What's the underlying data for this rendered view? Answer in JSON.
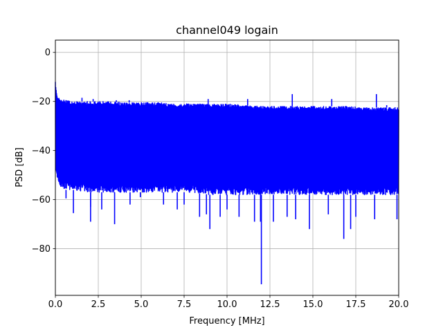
{
  "chart_data": {
    "type": "line",
    "title": "channel049 logain",
    "xlabel": "Frequency [MHz]",
    "ylabel": "PSD [dB]",
    "xlim": [
      0,
      20
    ],
    "ylim": [
      -99,
      5
    ],
    "xticks": [
      0,
      2.5,
      5,
      7.5,
      10,
      12.5,
      15,
      17.5,
      20
    ],
    "xtick_labels": [
      "0.0",
      "2.5",
      "5.0",
      "7.5",
      "10.0",
      "12.5",
      "15.0",
      "17.5",
      "20.0"
    ],
    "yticks": [
      0,
      -20,
      -40,
      -60,
      -80
    ],
    "ytick_labels": [
      "0",
      "−20",
      "−40",
      "−60",
      "−80"
    ],
    "grid": true,
    "series": [
      {
        "color": "#0000ff",
        "envelope": {
          "x": [
            0,
            0.1,
            0.3,
            0.6,
            1,
            2,
            3,
            4,
            5,
            6,
            7,
            8,
            9,
            10,
            11,
            12,
            13,
            14,
            15,
            16,
            17,
            18,
            19,
            20
          ],
          "upper": [
            -12,
            -17,
            -19,
            -19.5,
            -20,
            -20,
            -20,
            -20.5,
            -20.5,
            -20.5,
            -21,
            -21,
            -21,
            -21,
            -21.5,
            -22,
            -22,
            -22,
            -22,
            -22,
            -22,
            -22.5,
            -22.5,
            -22.5
          ],
          "lower": [
            -48,
            -52,
            -55,
            -56,
            -56,
            -57,
            -57,
            -57,
            -57,
            -57,
            -57,
            -57,
            -58,
            -58,
            -58,
            -58,
            -58,
            -58,
            -58,
            -58,
            -58,
            -58,
            -58,
            -58
          ]
        },
        "peaks": [
          {
            "x": 1.55,
            "y": -18.5
          },
          {
            "x": 2.2,
            "y": -19
          },
          {
            "x": 3.55,
            "y": -19.5
          },
          {
            "x": 4.3,
            "y": -19.5
          },
          {
            "x": 8.9,
            "y": -19
          },
          {
            "x": 11.2,
            "y": -19
          },
          {
            "x": 13.8,
            "y": -17
          },
          {
            "x": 16.1,
            "y": -19
          },
          {
            "x": 18.7,
            "y": -17
          },
          {
            "x": 19.3,
            "y": -21.5
          }
        ],
        "dips": [
          {
            "x": 0.62,
            "y": -59.5
          },
          {
            "x": 1.05,
            "y": -65.5
          },
          {
            "x": 2.05,
            "y": -63
          },
          {
            "x": 2.05,
            "y": -69
          },
          {
            "x": 2.7,
            "y": -64
          },
          {
            "x": 3.45,
            "y": -70
          },
          {
            "x": 4.35,
            "y": -62
          },
          {
            "x": 4.95,
            "y": -59
          },
          {
            "x": 6.3,
            "y": -62
          },
          {
            "x": 7.1,
            "y": -64
          },
          {
            "x": 7.5,
            "y": -62
          },
          {
            "x": 8.4,
            "y": -67
          },
          {
            "x": 8.8,
            "y": -66
          },
          {
            "x": 9.0,
            "y": -72
          },
          {
            "x": 9.6,
            "y": -67
          },
          {
            "x": 10.0,
            "y": -64
          },
          {
            "x": 10.7,
            "y": -67
          },
          {
            "x": 11.6,
            "y": -69
          },
          {
            "x": 11.95,
            "y": -69
          },
          {
            "x": 12.0,
            "y": -94.5
          },
          {
            "x": 12.7,
            "y": -69
          },
          {
            "x": 13.5,
            "y": -67
          },
          {
            "x": 14.0,
            "y": -68
          },
          {
            "x": 14.8,
            "y": -72
          },
          {
            "x": 15.9,
            "y": -66
          },
          {
            "x": 16.8,
            "y": -76
          },
          {
            "x": 17.2,
            "y": -72
          },
          {
            "x": 17.5,
            "y": -67
          },
          {
            "x": 18.6,
            "y": -68
          },
          {
            "x": 19.9,
            "y": -68
          }
        ]
      }
    ]
  }
}
